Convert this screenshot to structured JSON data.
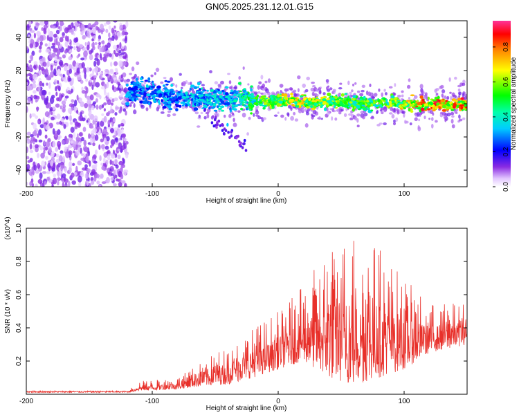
{
  "title": "GN05.2025.231.12.01.G15",
  "chart_data": [
    {
      "type": "heatmap",
      "panel": "top",
      "xlabel": "Height of straight line (km)",
      "ylabel": "Frequency (Hz)",
      "xlim": [
        -200,
        150
      ],
      "ylim": [
        -50,
        50
      ],
      "xticks": [
        -200,
        -100,
        0,
        100
      ],
      "yticks": [
        -40,
        -20,
        0,
        20,
        40
      ],
      "colorbar": {
        "label": "Normalized spectral amplitude",
        "range": [
          0,
          0.95
        ],
        "ticks": [
          0.0,
          0.2,
          0.4,
          0.6,
          0.8
        ]
      },
      "noise_region_x": [
        -200,
        -120
      ],
      "ridge": {
        "x": [
          -120,
          -100,
          -80,
          -60,
          -40,
          -20,
          0,
          20,
          40,
          60,
          80,
          100,
          120,
          150
        ],
        "frequency": [
          7,
          6,
          4,
          3,
          3,
          2,
          2,
          1,
          1,
          1,
          0,
          0,
          -1,
          0
        ],
        "amplitude": [
          0.35,
          0.35,
          0.35,
          0.4,
          0.4,
          0.55,
          0.7,
          0.75,
          0.65,
          0.6,
          0.6,
          0.75,
          0.9,
          0.85
        ]
      }
    },
    {
      "type": "line",
      "panel": "bottom",
      "xlabel": "Height of straight line (km)",
      "ylabel": "SNR (10 * v/v)",
      "y_multiplier": "(x10^4)",
      "xlim": [
        -200,
        150
      ],
      "ylim": [
        0,
        1.0
      ],
      "xticks": [
        -200,
        -100,
        0,
        100
      ],
      "yticks": [
        0.2,
        0.4,
        0.6,
        0.8,
        1.0
      ],
      "color": "#e8302a",
      "envelope": {
        "x": [
          -200,
          -120,
          -110,
          -80,
          -60,
          -40,
          -20,
          0,
          20,
          40,
          60,
          80,
          100,
          120,
          150
        ],
        "lower": [
          0.01,
          0.01,
          0.02,
          0.03,
          0.05,
          0.06,
          0.1,
          0.15,
          0.2,
          0.1,
          0.05,
          0.1,
          0.15,
          0.25,
          0.3
        ],
        "upper": [
          0.02,
          0.02,
          0.08,
          0.1,
          0.2,
          0.3,
          0.4,
          0.5,
          0.65,
          0.9,
          1.0,
          0.9,
          0.7,
          0.55,
          0.55
        ]
      }
    }
  ]
}
